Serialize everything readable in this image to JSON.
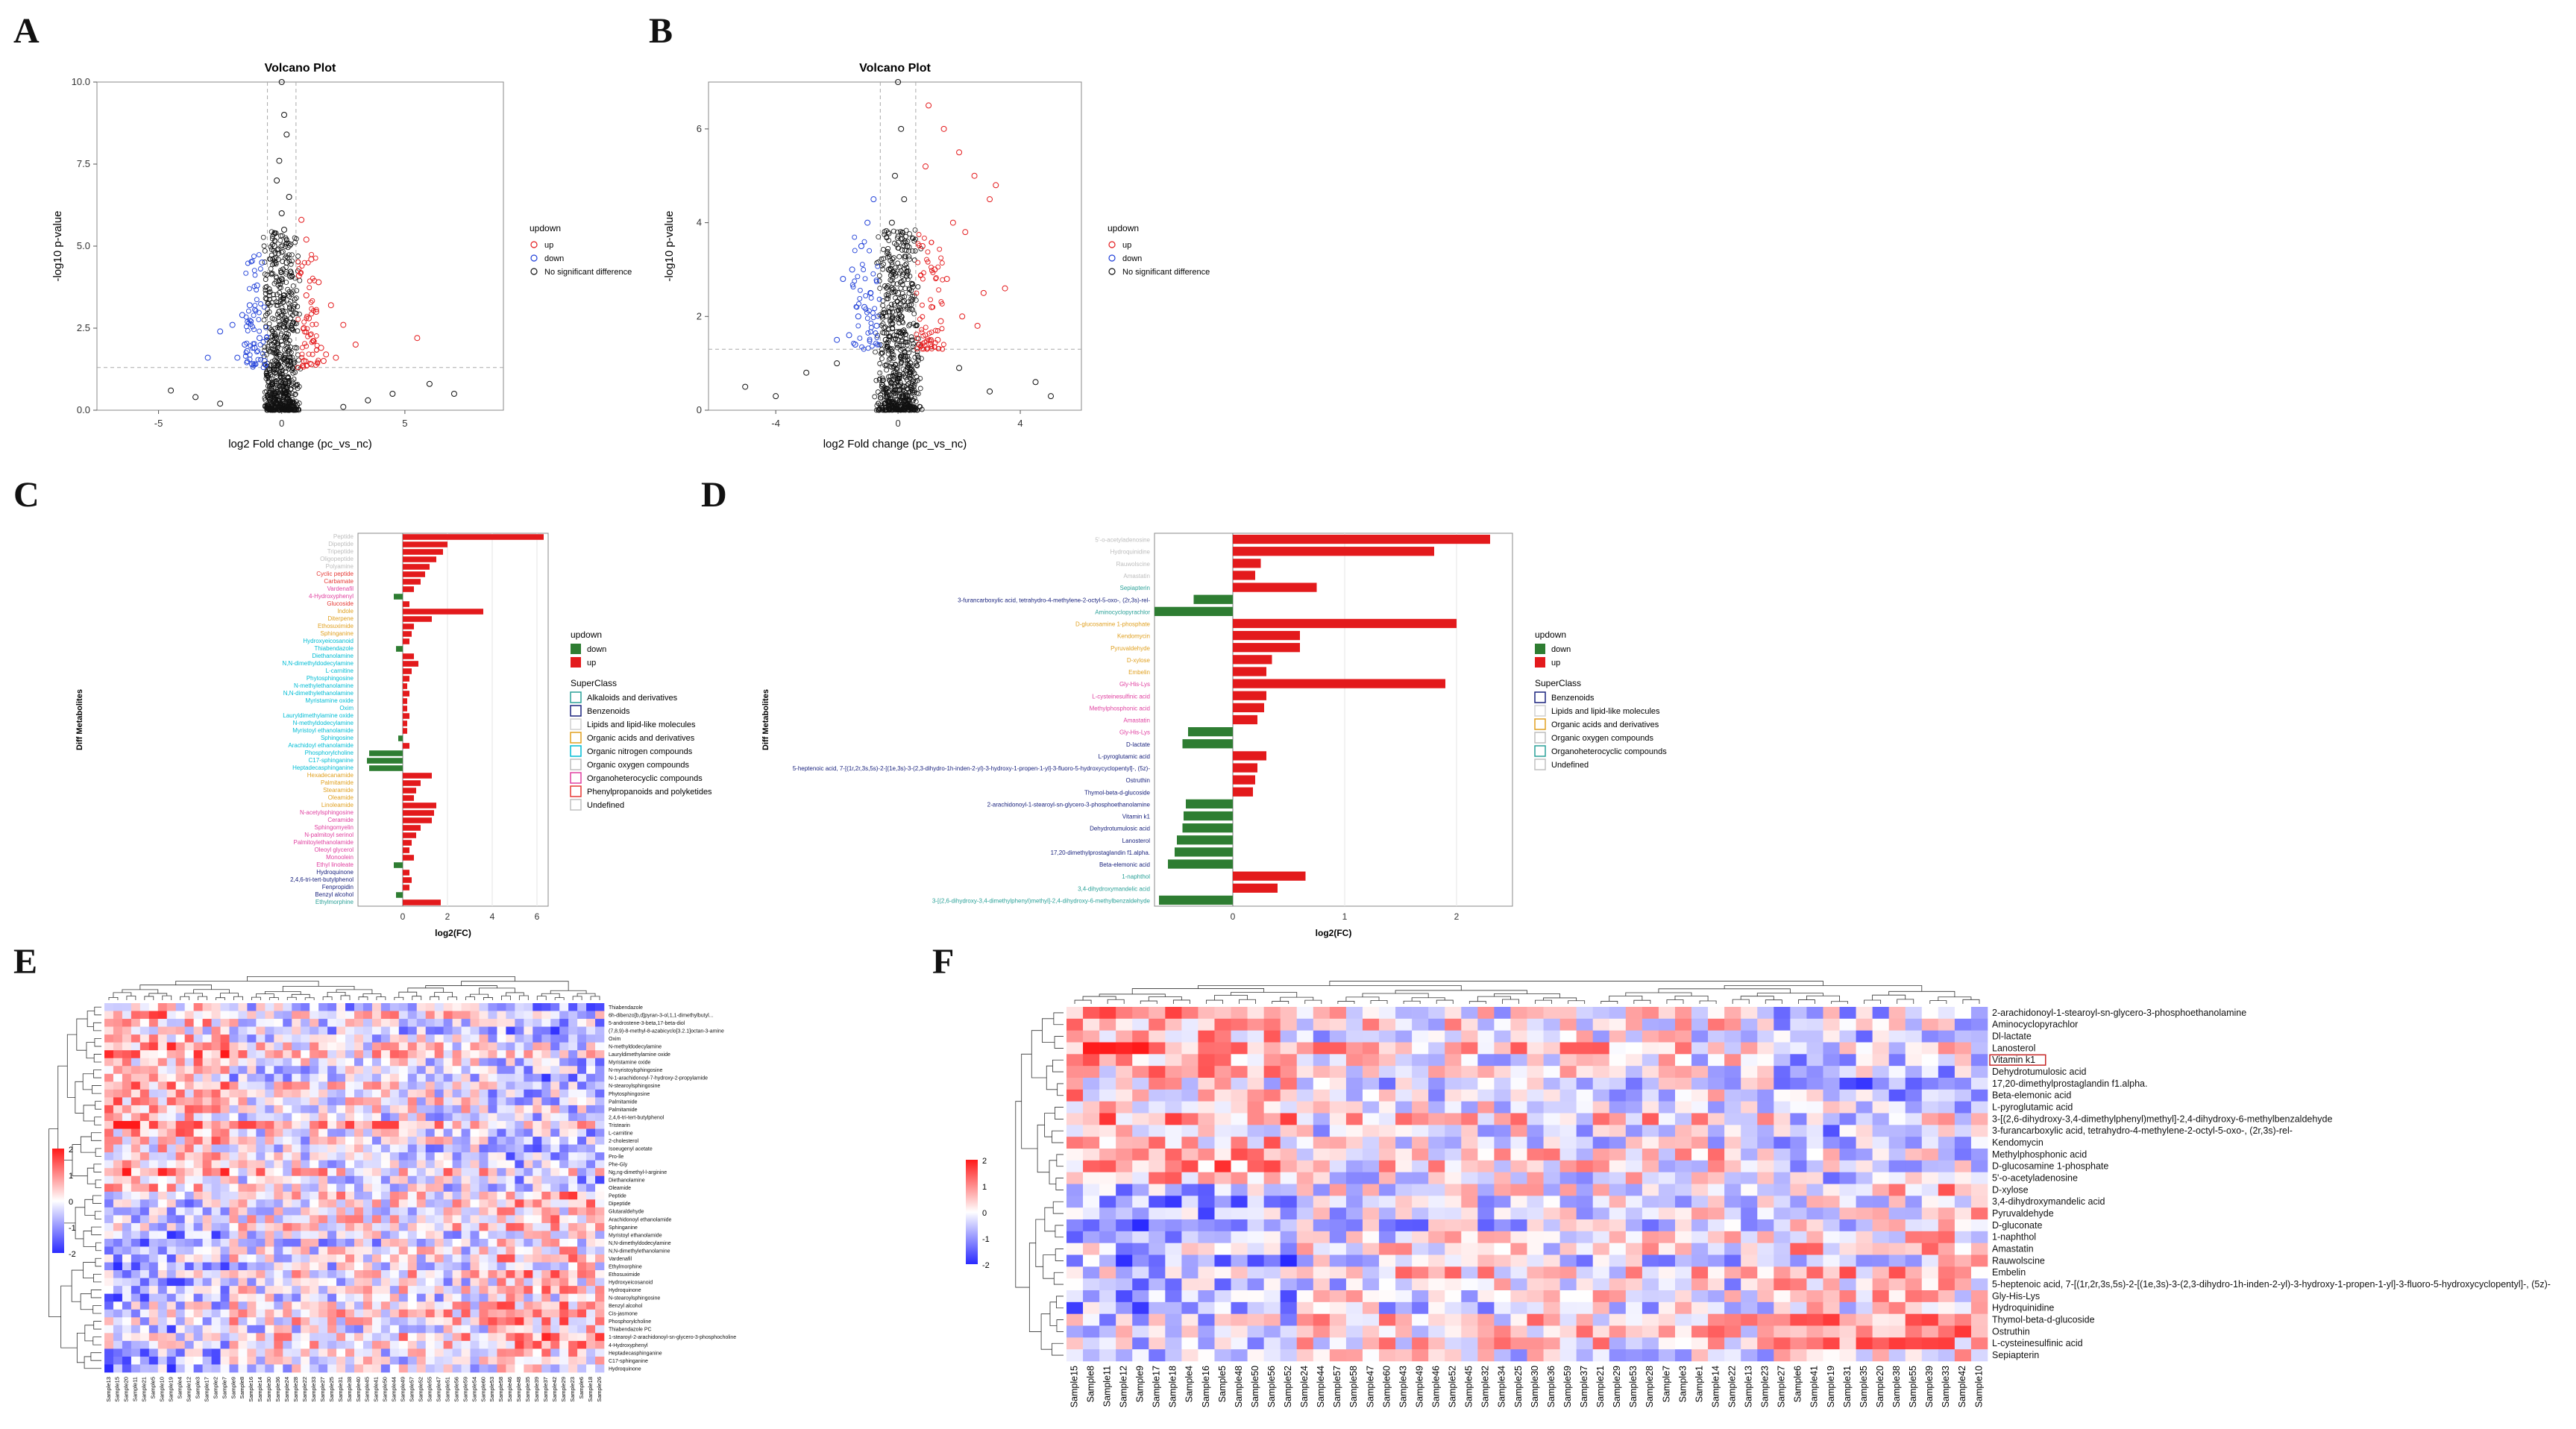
{
  "panels": {
    "A": "A",
    "B": "B",
    "C": "C",
    "D": "D",
    "E": "E",
    "F": "F"
  },
  "colors": {
    "up": "#e41a1c",
    "down": "#1f3fd8",
    "ns": "#111111",
    "bar_up": "#e31a1c",
    "bar_down": "#2e7d32",
    "heat_low": "#2a2aff",
    "heat_mid": "#ffffff",
    "heat_high": "#ff1a1a"
  },
  "chart_data": [
    {
      "id": "A",
      "type": "scatter",
      "title": "Volcano Plot",
      "xlabel": "log2 Fold change (pc_vs_nc)",
      "ylabel": "-log10 p-value",
      "xlim": [
        -7.5,
        9
      ],
      "ylim": [
        0,
        10
      ],
      "xticks": [
        -5,
        0,
        5
      ],
      "yticks": [
        0.0,
        2.5,
        5.0,
        7.5,
        10.0
      ],
      "ytick_labels": [
        "0.0",
        "2.5",
        "5.0",
        "7.5",
        "10.0"
      ],
      "thresholds": {
        "x": [
          -0.58,
          0.58
        ],
        "y": 1.3
      },
      "legend": {
        "title": "updown",
        "items": [
          "up",
          "down",
          "No significant difference"
        ]
      },
      "groups": [
        {
          "name": "up",
          "x": [
            0.8,
            1.0,
            1.2,
            1.5,
            2.0,
            1.1,
            0.9,
            1.3,
            1.6,
            1.8,
            2.2,
            0.7,
            1.0,
            1.4,
            2.5,
            3.0,
            5.5,
            0.9,
            1.2,
            1.7
          ],
          "y": [
            5.8,
            5.2,
            4.6,
            3.9,
            3.2,
            2.8,
            2.5,
            2.1,
            1.9,
            1.7,
            1.6,
            4.1,
            3.5,
            3.0,
            2.6,
            2.0,
            2.2,
            1.5,
            1.4,
            1.5
          ]
        },
        {
          "name": "down",
          "x": [
            -0.8,
            -1.0,
            -1.3,
            -1.6,
            -2.0,
            -2.5,
            -0.9,
            -1.1,
            -1.4,
            -1.8,
            -0.7,
            -1.2,
            -3.0,
            -1.5
          ],
          "y": [
            4.5,
            3.8,
            3.2,
            2.9,
            2.6,
            2.4,
            2.2,
            1.9,
            1.8,
            1.6,
            1.5,
            1.4,
            1.6,
            2.0
          ]
        },
        {
          "name": "No significant difference",
          "x": [
            0.0,
            0.1,
            0.2,
            -0.1,
            -0.2,
            0.3,
            0.0,
            0.1,
            -0.3,
            0.2,
            0.0,
            0.1,
            -0.1,
            0.4,
            -0.4,
            0.2,
            0.0,
            -0.2,
            0.3,
            0.1,
            -3.5,
            -4.5,
            3.5,
            6.0,
            7.0,
            -2.5,
            2.5,
            4.5
          ],
          "y": [
            10.0,
            9.0,
            8.4,
            7.6,
            7.0,
            6.5,
            6.0,
            5.5,
            5.0,
            4.5,
            4.0,
            3.5,
            3.0,
            2.5,
            2.0,
            1.5,
            1.0,
            0.8,
            0.5,
            0.2,
            0.4,
            0.6,
            0.3,
            0.8,
            0.5,
            0.2,
            0.1,
            0.5
          ]
        }
      ]
    },
    {
      "id": "B",
      "type": "scatter",
      "title": "Volcano Plot",
      "xlabel": "log2 Fold change (pc_vs_nc)",
      "ylabel": "-log10 p-value",
      "xlim": [
        -6.2,
        6
      ],
      "ylim": [
        0,
        7
      ],
      "xticks": [
        -4,
        0,
        4
      ],
      "yticks": [
        0,
        2,
        4,
        6
      ],
      "ytick_labels": [
        "0",
        "2",
        "4",
        "6"
      ],
      "thresholds": {
        "x": [
          -0.58,
          0.58
        ],
        "y": 1.3
      },
      "legend": {
        "title": "updown",
        "items": [
          "up",
          "down",
          "No significant difference"
        ]
      },
      "groups": [
        {
          "name": "up",
          "x": [
            1.0,
            1.5,
            2.0,
            2.5,
            3.0,
            1.8,
            2.2,
            0.8,
            1.2,
            1.6,
            2.8,
            3.2,
            0.9,
            1.1,
            1.4,
            2.1,
            2.6,
            3.5,
            1.3,
            0.7
          ],
          "y": [
            6.5,
            6.0,
            5.5,
            5.0,
            4.5,
            4.0,
            3.8,
            3.5,
            3.0,
            2.8,
            2.5,
            4.8,
            5.2,
            2.2,
            1.9,
            2.0,
            1.8,
            2.6,
            1.5,
            1.4
          ]
        },
        {
          "name": "down",
          "x": [
            -0.8,
            -1.0,
            -1.2,
            -1.5,
            -1.8,
            -0.9,
            -1.1,
            -1.3,
            -0.7,
            -1.6,
            -2.0,
            -1.4
          ],
          "y": [
            4.5,
            4.0,
            3.5,
            3.0,
            2.8,
            2.5,
            2.2,
            2.0,
            1.8,
            1.6,
            1.5,
            1.4
          ]
        },
        {
          "name": "No significant difference",
          "x": [
            0.0,
            0.1,
            -0.1,
            0.2,
            -0.2,
            0.3,
            -0.3,
            0.0,
            0.1,
            -0.4,
            0.4,
            0.2,
            -4.0,
            -5.0,
            -3.0,
            3.0,
            4.5,
            5.0,
            -2.0,
            2.0
          ],
          "y": [
            7.0,
            6.0,
            5.0,
            4.5,
            4.0,
            3.5,
            3.0,
            2.5,
            2.0,
            1.5,
            1.0,
            0.5,
            0.3,
            0.5,
            0.8,
            0.4,
            0.6,
            0.3,
            1.0,
            0.9
          ]
        }
      ]
    },
    {
      "id": "C",
      "type": "bar",
      "orientation": "horizontal",
      "xlabel": "log2(FC)",
      "ylabel": "Diff Metabolites",
      "xlim": [
        -2,
        6.5
      ],
      "xticks": [
        0,
        2,
        4,
        6
      ],
      "legend_updown": {
        "title": "updown",
        "items": [
          "down",
          "up"
        ]
      },
      "legend_superclass": {
        "title": "SuperClass",
        "items": [
          "Alkaloids and derivatives",
          "Benzenoids",
          "Lipids and lipid-like molecules",
          "Organic acids and derivatives",
          "Organic nitrogen compounds",
          "Organic oxygen compounds",
          "Organoheterocyclic compounds",
          "Phenylpropanoids and polyketides",
          "Undefined"
        ],
        "colors": [
          "#2aa198",
          "#1a237e",
          "#d0d0d0",
          "#e0a020",
          "#00bcd4",
          "#bdbdbd",
          "#e040a0",
          "#e53935",
          "#c0c0c0"
        ]
      },
      "labels": [
        "Peptide",
        "Dipeptide",
        "Tripeptide",
        "Oligopeptide",
        "Polyamine",
        "Cyclic peptide",
        "Carbamate",
        "Vardenafil",
        "4-Hydroxyphenyl",
        "Glucoside",
        "Indole",
        "Diterpene",
        "Ethosuximide",
        "Sphinganine",
        "Hydroxyeicosanoid",
        "Thiabendazole",
        "Diethanolamine",
        "N,N-dimethyldodecylamine",
        "L-carnitine",
        "Phytosphingosine",
        "N-methylethanolamine",
        "N,N-dimethylethanolamine",
        "Myristamine oxide",
        "Oxim",
        "Lauryldimethylamine oxide",
        "N-methyldodecylamine",
        "Myristoyl ethanolamide",
        "Sphingosine",
        "Arachidoyl ethanolamide",
        "Phosphorylcholine",
        "C17-sphinganine",
        "Heptadecasphinganine",
        "Hexadecanamide",
        "Palmitamide",
        "Stearamide",
        "Oleamide",
        "Linoleamide",
        "N-acetylsphingosine",
        "Ceramide",
        "Sphingomyelin",
        "N-palmitoyl serinol",
        "Palmitoylethanolamide",
        "Oleoyl glycerol",
        "Monoolein",
        "Ethyl linoleate",
        "Hydroquinone",
        "2,4,6-tri-tert-butylphenol",
        "Fenpropidin",
        "Benzyl alcohol",
        "Ethylmorphine"
      ],
      "values": [
        6.3,
        2.0,
        1.8,
        1.5,
        1.2,
        1.0,
        0.8,
        0.5,
        -0.4,
        0.3,
        3.6,
        1.3,
        0.5,
        0.4,
        0.3,
        -0.3,
        0.5,
        0.7,
        0.4,
        0.3,
        0.2,
        0.3,
        0.2,
        0.2,
        0.3,
        0.2,
        0.2,
        -0.2,
        0.3,
        -1.5,
        -1.6,
        -1.5,
        1.3,
        0.8,
        0.6,
        0.5,
        1.5,
        1.4,
        1.3,
        0.8,
        0.6,
        0.4,
        0.3,
        0.5,
        -0.4,
        0.3,
        0.4,
        0.3,
        -0.3,
        1.7
      ],
      "label_colors": [
        "#bdbdbd",
        "#bdbdbd",
        "#bdbdbd",
        "#bdbdbd",
        "#bdbdbd",
        "#e53935",
        "#e53935",
        "#e040a0",
        "#e040a0",
        "#e53935",
        "#e0a020",
        "#e0a020",
        "#e0a020",
        "#e0a020",
        "#00bcd4",
        "#00bcd4",
        "#00bcd4",
        "#00bcd4",
        "#00bcd4",
        "#00bcd4",
        "#00bcd4",
        "#00bcd4",
        "#00bcd4",
        "#00bcd4",
        "#00bcd4",
        "#00bcd4",
        "#00bcd4",
        "#00bcd4",
        "#00bcd4",
        "#00bcd4",
        "#00bcd4",
        "#00bcd4",
        "#e0a020",
        "#e0a020",
        "#e0a020",
        "#e0a020",
        "#e0a020",
        "#e040a0",
        "#e040a0",
        "#e040a0",
        "#e040a0",
        "#e040a0",
        "#e040a0",
        "#e040a0",
        "#e040a0",
        "#1a237e",
        "#1a237e",
        "#1a237e",
        "#1a237e",
        "#2aa198"
      ]
    },
    {
      "id": "D",
      "type": "bar",
      "orientation": "horizontal",
      "xlabel": "log2(FC)",
      "ylabel": "Diff Metabolites",
      "xlim": [
        -0.7,
        2.5
      ],
      "xticks": [
        0,
        1,
        2
      ],
      "legend_updown": {
        "title": "updown",
        "items": [
          "down",
          "up"
        ]
      },
      "legend_superclass": {
        "title": "SuperClass",
        "items": [
          "Benzenoids",
          "Lipids and lipid-like molecules",
          "Organic acids and derivatives",
          "Organic oxygen compounds",
          "Organoheterocyclic compounds",
          "Undefined"
        ],
        "colors": [
          "#1a237e",
          "#d0d0d0",
          "#e0a020",
          "#bdbdbd",
          "#2aa198",
          "#c0c0c0"
        ]
      },
      "labels": [
        "5'-o-acetyladenosine",
        "Hydroquinidine",
        "Rauwolscine",
        "Amastatin",
        "Sepiapterin",
        "3-furancarboxylic acid, tetrahydro-4-methylene-2-octyl-5-oxo-, (2r,3s)-rel-",
        "Aminocyclopyrachlor",
        "D-glucosamine 1-phosphate",
        "Kendomycin",
        "Pyruvaldehyde",
        "D-xylose",
        "Embelin",
        "Gly-His-Lys",
        "L-cysteinesulfinic acid",
        "Methylphosphonic acid",
        "Amastatin",
        "Gly-His-Lys",
        "D-lactate",
        "L-pyroglutamic acid",
        "5-heptenoic acid, 7-[(1r,2r,3s,5s)-2-[(1e,3s)-3-(2,3-dihydro-1h-inden-2-yl)-3-hydroxy-1-propen-1-yl]-3-fluoro-5-hydroxycyclopentyl]-, (5z)-",
        "Ostruthin",
        "Thymol-beta-d-glucoside",
        "2-arachidonoyl-1-stearoyl-sn-glycero-3-phosphoethanolamine",
        "Vitamin k1",
        "Dehydrotumulosic acid",
        "Lanosterol",
        "17,20-dimethylprostaglandin f1.alpha.",
        "Beta-elemonic acid",
        "1-naphthol",
        "3,4-dihydroxymandelic acid",
        "3-[(2,6-dihydroxy-3,4-dimethylphenyl)methyl]-2,4-dihydroxy-6-methylbenzaldehyde"
      ],
      "values": [
        2.3,
        1.8,
        0.25,
        0.2,
        0.75,
        -0.35,
        -0.7,
        2.0,
        0.6,
        0.6,
        0.35,
        0.3,
        1.9,
        0.3,
        0.28,
        0.22,
        -0.4,
        -0.45,
        0.3,
        0.22,
        0.2,
        0.18,
        -0.42,
        -0.44,
        -0.45,
        -0.5,
        -0.52,
        -0.58,
        0.65,
        0.4,
        -0.66
      ],
      "label_colors": [
        "#bdbdbd",
        "#bdbdbd",
        "#bdbdbd",
        "#bdbdbd",
        "#2aa198",
        "#1a237e",
        "#2aa198",
        "#e0a020",
        "#e0a020",
        "#e0a020",
        "#e0a020",
        "#e0a020",
        "#e040a0",
        "#e040a0",
        "#e040a0",
        "#e040a0",
        "#e040a0",
        "#1a237e",
        "#1a237e",
        "#1a237e",
        "#1a237e",
        "#1a237e",
        "#1a237e",
        "#1a237e",
        "#1a237e",
        "#1a237e",
        "#1a237e",
        "#1a237e",
        "#2aa198",
        "#2aa198",
        "#2aa198"
      ]
    },
    {
      "id": "E",
      "type": "heatmap",
      "scale": {
        "min": -2,
        "max": 2,
        "ticks": [
          "2",
          "1",
          "0",
          "-1",
          "-2"
        ]
      },
      "rows": [
        "Thiabendazole",
        "6h-dibenzo[b,d]pyran-3-ol,1,1-dimethylbutyl...",
        "5-androstene-3-beta,17-beta-diol",
        "(7,8,9)-8-methyl-8-azabicyclo[3.2.1]octan-3-amine",
        "Oxim",
        "N-methyldodecylamine",
        "Lauryldimethylamine oxide",
        "Myristamine oxide",
        "N-myristoylsphingosine",
        "N-1-arachidonoyl-7-hydroxy-2-propylamide",
        "N-stearoylsphingosine",
        "Phytosphingosine",
        "Palmitamide",
        "Palmitamide",
        "2,4,6-tri-tert-butylphenol",
        "Tristearin",
        "L-carnitine",
        "2-cholesterol",
        "Isoeugenyl acetate",
        "Pro-lle",
        "Phe-Gly",
        "Ng,ng-dimethyl-l-arginine",
        "Diethanolamine",
        "Oleamide",
        "Peptide",
        "Dipeptide",
        "Glutaraldehyde",
        "Arachidonoyl ethanolamide",
        "Sphinganine",
        "Myristoyl ethanolamide",
        "N,N-dimethyldodecylamine",
        "N,N-dimethylethanolamine",
        "Vardenafil",
        "Ethylmorphine",
        "Ethosuximide",
        "Hydroxyeicosanoid",
        "Hydroquinone",
        "N-stearoylsphingosine",
        "Benzyl alcohol",
        "Cis-jasmone",
        "Phosphorylcholine",
        "Thiabendazole PC",
        "1-stearoyl-2-arachidonoyl-sn-glycero-3-phosphocholine",
        "4-Hydroxyphenyl",
        "Heptadecasphinganine",
        "C17-sphinganine",
        "Hydroquinone"
      ],
      "columns": [
        "Sample13",
        "Sample15",
        "Sample20",
        "Sample11",
        "Sample21",
        "Sample5",
        "Sample10",
        "Sample19",
        "Sample4",
        "Sample12",
        "Sample3",
        "Sample17",
        "Sample2",
        "Sample7",
        "Sample9",
        "Sample8",
        "Sample16",
        "Sample14",
        "Sample30",
        "Sample36",
        "Sample24",
        "Sample28",
        "Sample22",
        "Sample33",
        "Sample27",
        "Sample25",
        "Sample31",
        "Sample38",
        "Sample40",
        "Sample45",
        "Sample41",
        "Sample50",
        "Sample44",
        "Sample49",
        "Sample57",
        "Sample52",
        "Sample55",
        "Sample47",
        "Sample51",
        "Sample56",
        "Sample59",
        "Sample54",
        "Sample60",
        "Sample53",
        "Sample58",
        "Sample46",
        "Sample48",
        "Sample35",
        "Sample39",
        "Sample37",
        "Sample42",
        "Sample29",
        "Sample23",
        "Sample6",
        "Sample18",
        "Sample26"
      ]
    },
    {
      "id": "F",
      "type": "heatmap",
      "scale": {
        "min": -2,
        "max": 2,
        "ticks": [
          "2",
          "1",
          "0",
          "-1",
          "-2"
        ]
      },
      "highlight_row": "Vitamin k1",
      "rows": [
        "2-arachidonoyl-1-stearoyl-sn-glycero-3-phosphoethanolamine",
        "Aminocyclopyrachlor",
        "Dl-lactate",
        "Lanosterol",
        "Vitamin k1",
        "Dehydrotumulosic acid",
        "17,20-dimethylprostaglandin f1.alpha.",
        "Beta-elemonic acid",
        "L-pyroglutamic acid",
        "3-[(2,6-dihydroxy-3,4-dimethylphenyl)methyl]-2,4-dihydroxy-6-methylbenzaldehyde",
        "3-furancarboxylic acid, tetrahydro-4-methylene-2-octyl-5-oxo-, (2r,3s)-rel-",
        "Kendomycin",
        "Methylphosphonic acid",
        "D-glucosamine 1-phosphate",
        "5'-o-acetyladenosine",
        "D-xylose",
        "3,4-dihydroxymandelic acid",
        "Pyruvaldehyde",
        "D-gluconate",
        "1-naphthol",
        "Amastatin",
        "Rauwolscine",
        "Embelin",
        "5-heptenoic acid, 7-[(1r,2r,3s,5s)-2-[(1e,3s)-3-(2,3-dihydro-1h-inden-2-yl)-3-hydroxy-1-propen-1-yl]-3-fluoro-5-hydroxycyclopentyl]-, (5z)-",
        "Gly-His-Lys",
        "Hydroquinidine",
        "Thymol-beta-d-glucoside",
        "Ostruthin",
        "L-cysteinesulfinic acid",
        "Sepiapterin"
      ],
      "columns": [
        "Sample15",
        "Sample8",
        "Sample11",
        "Sample12",
        "Sample9",
        "Sample17",
        "Sample18",
        "Sample4",
        "Sample16",
        "Sample5",
        "Sample48",
        "Sample50",
        "Sample56",
        "Sample52",
        "Sample24",
        "Sample44",
        "Sample57",
        "Sample58",
        "Sample47",
        "Sample60",
        "Sample43",
        "Sample49",
        "Sample46",
        "Sample52",
        "Sample45",
        "Sample32",
        "Sample34",
        "Sample25",
        "Sample30",
        "Sample36",
        "Sample59",
        "Sample37",
        "Sample21",
        "Sample29",
        "Sample53",
        "Sample28",
        "Sample7",
        "Sample3",
        "Sample1",
        "Sample14",
        "Sample22",
        "Sample13",
        "Sample23",
        "Sample27",
        "Sample6",
        "Sample41",
        "Sample19",
        "Sample31",
        "Sample35",
        "Sample20",
        "Sample38",
        "Sample55",
        "Sample39",
        "Sample33",
        "Sample42",
        "Sample10"
      ]
    }
  ]
}
